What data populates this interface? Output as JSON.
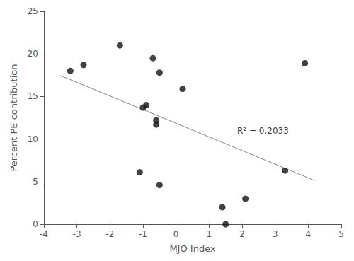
{
  "chart_data": {
    "type": "scatter",
    "x": [
      -3.2,
      -2.8,
      -1.7,
      -1.1,
      -1.0,
      -0.9,
      -0.7,
      -0.6,
      -0.6,
      -0.5,
      -0.5,
      0.2,
      1.4,
      1.5,
      2.1,
      3.3,
      3.9
    ],
    "y": [
      18.0,
      18.7,
      21.0,
      6.1,
      13.7,
      14.0,
      19.5,
      12.2,
      11.7,
      17.8,
      4.6,
      15.9,
      2.0,
      0.0,
      3.0,
      6.3,
      18.9
    ],
    "color": "#111111",
    "xlabel": "MJO Index",
    "ylabel": "Percent PE contribution",
    "xlim": [
      -4,
      5
    ],
    "ylim": [
      0,
      25
    ],
    "xticks": [
      -4,
      -3,
      -2,
      -1,
      0,
      1,
      2,
      3,
      4,
      5
    ],
    "yticks": [
      0,
      5,
      10,
      15,
      20,
      25
    ],
    "grid": false,
    "line": {
      "type": "line",
      "x": [
        -3.5,
        4.2
      ],
      "y": [
        17.4587,
        5.1231
      ],
      "color": "#888888"
    },
    "annotations": [
      {
        "text": "R² = 0.2033",
        "x": 1.85,
        "y": 10.5
      }
    ]
  }
}
